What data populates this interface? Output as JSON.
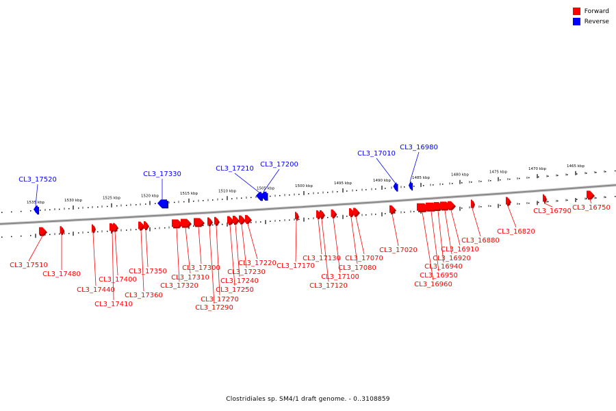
{
  "legend": {
    "items": [
      {
        "label": "Forward",
        "color": "#ff0000"
      },
      {
        "label": "Reverse",
        "color": "#0000ff"
      }
    ]
  },
  "caption": "Clostridiales sp. SM4/1 draft genome. - 0..3108859",
  "colors": {
    "forward": "#ff0000",
    "reverse": "#0000ff",
    "backbone": "#888888",
    "tick": "#000000"
  },
  "ruler_labels": [
    "1535 kbp",
    "1530 kbp",
    "1525 kbp",
    "1520 kbp",
    "1515 kbp",
    "1510 kbp",
    "1505 kbp",
    "1500 kbp",
    "1495 kbp",
    "1490 kbp",
    "1485 kbp",
    "1480 kbp",
    "1475 kbp",
    "1470 kbp",
    "1465 kbp"
  ],
  "reverse_genes": [
    "CL3_17520",
    "CL3_17330",
    "CL3_17210",
    "CL3_17200",
    "CL3_17010",
    "CL3_16980"
  ],
  "forward_genes": [
    "CL3_17510",
    "CL3_17480",
    "CL3_17440",
    "CL3_17410",
    "CL3_17400",
    "CL3_17360",
    "CL3_17350",
    "CL3_17320",
    "CL3_17310",
    "CL3_17300",
    "CL3_17290",
    "CL3_17270",
    "CL3_17250",
    "CL3_17240",
    "CL3_17230",
    "CL3_17220",
    "CL3_17170",
    "CL3_17130",
    "CL3_17120",
    "CL3_17100",
    "CL3_17080",
    "CL3_17070",
    "CL3_17020",
    "CL3_16960",
    "CL3_16950",
    "CL3_16940",
    "CL3_16920",
    "CL3_16910",
    "CL3_16880",
    "CL3_16820",
    "CL3_16790",
    "CL3_16750"
  ]
}
